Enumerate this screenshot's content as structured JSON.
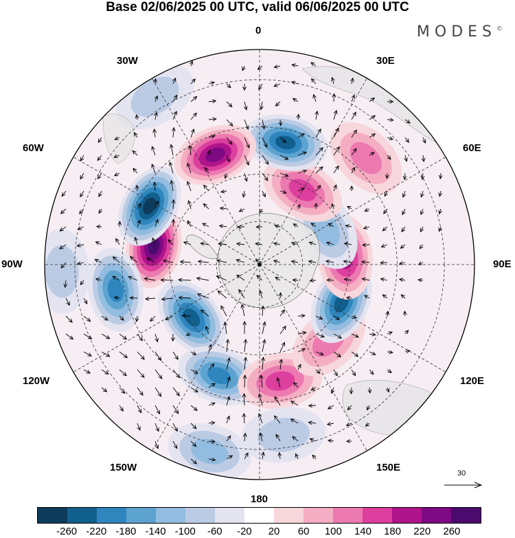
{
  "title": "Base 02/06/2025 00 UTC, valid 06/06/2025 00 UTC",
  "brand": "MODES",
  "brand_mark": "©",
  "longitude_labels": {
    "lon_0": "0",
    "lon_30E": "30E",
    "lon_60E": "60E",
    "lon_90E": "90E",
    "lon_120E": "120E",
    "lon_150E": "150E",
    "lon_180": "180",
    "lon_150W": "150W",
    "lon_120W": "120W",
    "lon_90W": "90W",
    "lon_60W": "60W",
    "lon_30W": "30W"
  },
  "reference_vector": {
    "label": "30"
  },
  "colorbar": {
    "ticks": [
      "-260",
      "-220",
      "-180",
      "-140",
      "-100",
      "-60",
      "-20",
      "20",
      "60",
      "100",
      "140",
      "180",
      "220",
      "260"
    ],
    "colors": [
      "#0d3b5c",
      "#115f8d",
      "#2f86bf",
      "#5da3d0",
      "#93bde0",
      "#bccbe4",
      "#e4e4f1",
      "#ffffff",
      "#f7d6dc",
      "#f4adc2",
      "#ec79b0",
      "#dc3f9d",
      "#b0148a",
      "#7d0a82",
      "#4b0a6e"
    ]
  },
  "anomalies": [
    {
      "lon": -100,
      "r": 0.5,
      "value": 260
    },
    {
      "lon": -80,
      "r": 0.68,
      "value": -200
    },
    {
      "lon": -52,
      "r": 0.4,
      "value": -240
    },
    {
      "lon": -20,
      "r": 0.55,
      "value": -200
    },
    {
      "lon": -15,
      "r": 0.9,
      "value": -110
    },
    {
      "lon": 10,
      "r": 0.55,
      "value": 170
    },
    {
      "lon": 8,
      "r": 0.8,
      "value": -60
    },
    {
      "lon": 42,
      "r": 0.48,
      "value": 100
    },
    {
      "lon": 65,
      "r": 0.42,
      "value": -230
    },
    {
      "lon": 95,
      "r": 0.4,
      "value": 200
    },
    {
      "lon": 118,
      "r": 0.35,
      "value": -120
    },
    {
      "lon": 135,
      "r": 0.7,
      "value": 120
    },
    {
      "lon": 150,
      "r": 0.4,
      "value": 150
    },
    {
      "lon": 168,
      "r": 0.58,
      "value": -250
    },
    {
      "lon": -158,
      "r": 0.55,
      "value": 230
    },
    {
      "lon": -118,
      "r": 0.58,
      "value": -270
    },
    {
      "lon": -88,
      "r": 0.92,
      "value": -90
    },
    {
      "lon": -148,
      "r": 0.92,
      "value": -80
    }
  ]
}
